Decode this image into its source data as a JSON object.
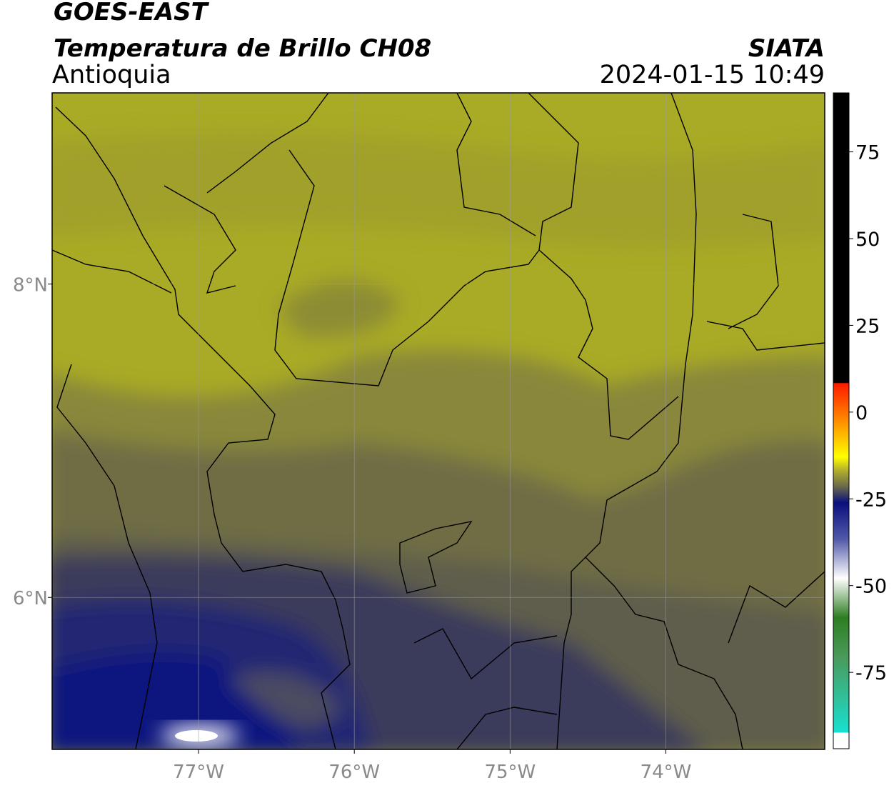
{
  "title": "GOES-EAST",
  "subtitle": "Temperatura de Brillo CH08",
  "region": "Antioquia",
  "source": "SIATA",
  "datetime": "2024-01-15 10:49",
  "map": {
    "xlim": [
      -77.94,
      -72.98
    ],
    "ylim": [
      5.03,
      9.22
    ],
    "xticks": [
      {
        "value": -77,
        "label": "77°W"
      },
      {
        "value": -76,
        "label": "76°W"
      },
      {
        "value": -75,
        "label": "75°W"
      },
      {
        "value": -74,
        "label": "74°W"
      }
    ],
    "yticks": [
      {
        "value": 6,
        "label": "6°N"
      },
      {
        "value": 8,
        "label": "8°N"
      }
    ],
    "grid": true
  },
  "colorbar": {
    "lim": [
      -97,
      92
    ],
    "ticks": [
      75,
      50,
      25,
      0,
      -25,
      -50,
      -75
    ]
  }
}
